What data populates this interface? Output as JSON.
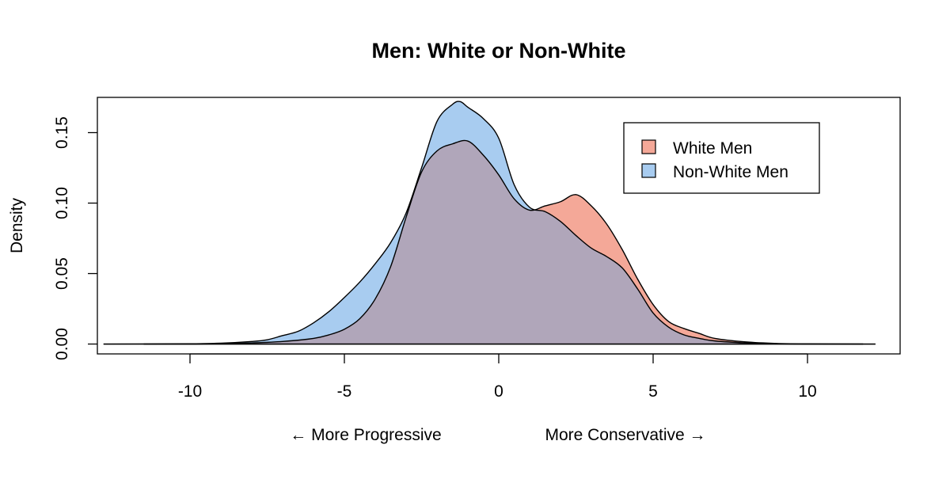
{
  "chart_data": {
    "type": "area",
    "title": "Men: White or Non-White",
    "ylabel": "Density",
    "xlabel_left": "← More Progressive",
    "xlabel_right": "More Conservative →",
    "xlim": [
      -13.0,
      13.0
    ],
    "ylim": [
      -0.007,
      0.175
    ],
    "x_ticks": [
      -10,
      -5,
      0,
      5,
      10
    ],
    "x_tick_labels": [
      "-10",
      "-5",
      "0",
      "5",
      "10"
    ],
    "y_ticks": [
      0.0,
      0.05,
      0.1,
      0.15
    ],
    "y_tick_labels": [
      "0.00",
      "0.05",
      "0.10",
      "0.15"
    ],
    "legend_position": "top-right",
    "series": [
      {
        "name": "White Men",
        "fill": "#F4A898",
        "x": [
          -11.5,
          -10.0,
          -9.0,
          -8.0,
          -7.0,
          -6.0,
          -5.5,
          -5.0,
          -4.5,
          -4.0,
          -3.5,
          -3.0,
          -2.5,
          -2.0,
          -1.5,
          -1.0,
          -0.5,
          0.0,
          0.5,
          1.0,
          1.5,
          2.0,
          2.5,
          3.0,
          3.5,
          4.0,
          4.5,
          5.0,
          5.5,
          6.0,
          6.5,
          7.0,
          8.0,
          9.0,
          10.0,
          11.8
        ],
        "y": [
          0.0,
          0.0,
          0.0003,
          0.0008,
          0.0018,
          0.004,
          0.0065,
          0.0105,
          0.018,
          0.032,
          0.055,
          0.09,
          0.122,
          0.137,
          0.142,
          0.144,
          0.134,
          0.12,
          0.103,
          0.095,
          0.098,
          0.101,
          0.106,
          0.098,
          0.085,
          0.067,
          0.046,
          0.028,
          0.016,
          0.011,
          0.0075,
          0.004,
          0.0015,
          0.0004,
          0.0001,
          0.0
        ]
      },
      {
        "name": "Non-White Men",
        "fill": "#A8CCF0",
        "x": [
          -12.8,
          -10.0,
          -9.0,
          -8.0,
          -7.5,
          -7.0,
          -6.5,
          -6.0,
          -5.5,
          -5.0,
          -4.5,
          -4.0,
          -3.5,
          -3.0,
          -2.5,
          -2.0,
          -1.5,
          -1.25,
          -1.0,
          -0.5,
          0.0,
          0.5,
          1.0,
          1.5,
          2.0,
          2.5,
          3.0,
          3.5,
          4.0,
          4.5,
          5.0,
          5.5,
          6.0,
          6.5,
          7.0,
          8.0,
          9.0,
          10.0,
          12.2
        ],
        "y": [
          0.0,
          0.0002,
          0.0006,
          0.0018,
          0.003,
          0.006,
          0.009,
          0.015,
          0.023,
          0.033,
          0.044,
          0.057,
          0.072,
          0.093,
          0.125,
          0.158,
          0.17,
          0.172,
          0.168,
          0.16,
          0.146,
          0.113,
          0.097,
          0.094,
          0.087,
          0.077,
          0.068,
          0.062,
          0.054,
          0.039,
          0.022,
          0.012,
          0.0065,
          0.004,
          0.0022,
          0.0008,
          0.0002,
          0.0,
          0.0
        ]
      }
    ],
    "overlap_fill": "#B0A6BA"
  }
}
